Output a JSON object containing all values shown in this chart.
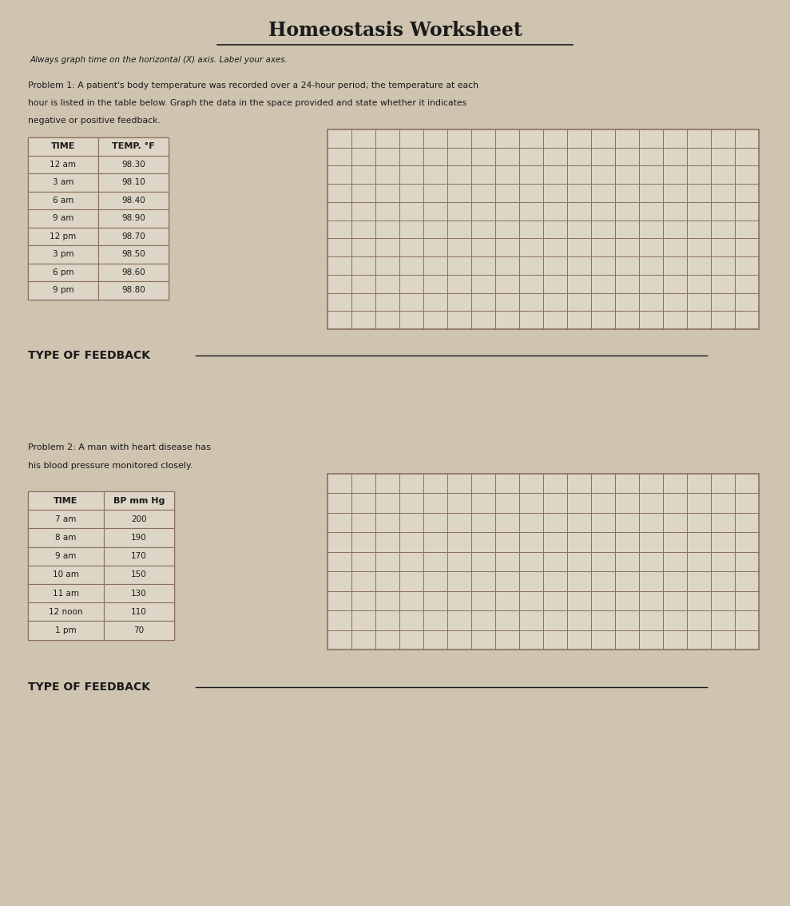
{
  "title": "Homeostasis Worksheet",
  "subtitle": "Always graph time on the horizontal (X) axis. Label your axes.",
  "bg_color": "#cfc4b0",
  "grid_color": "#8B6F5E",
  "grid_fill": "#ddd5c5",
  "table_fill": "#ddd5c5",
  "text_color": "#1a1a1a",
  "problem1_text_line1": "Problem 1: A patient's body temperature was recorded over a 24-hour period; the temperature at each",
  "problem1_text_line2": "hour is listed in the table below. Graph the data in the space provided and state whether it indicates",
  "problem1_text_line3": "negative or positive feedback.",
  "problem1_table_headers": [
    "TIME",
    "TEMP. °F"
  ],
  "problem1_table_data": [
    [
      "12 am",
      "98.30"
    ],
    [
      "3 am",
      "98.10"
    ],
    [
      "6 am",
      "98.40"
    ],
    [
      "9 am",
      "98.90"
    ],
    [
      "12 pm",
      "98.70"
    ],
    [
      "3 pm",
      "98.50"
    ],
    [
      "6 pm",
      "98.60"
    ],
    [
      "9 pm",
      "98.80"
    ]
  ],
  "type_of_feedback_label1": "TYPE OF FEEDBACK",
  "problem2_text_line1": "Problem 2: A man with heart disease has",
  "problem2_text_line2": "his blood pressure monitored closely.",
  "problem2_table_headers": [
    "TIME",
    "BP mm Hg"
  ],
  "problem2_table_data": [
    [
      "7 am",
      "200"
    ],
    [
      "8 am",
      "190"
    ],
    [
      "9 am",
      "170"
    ],
    [
      "10 am",
      "150"
    ],
    [
      "11 am",
      "130"
    ],
    [
      "12 noon",
      "110"
    ],
    [
      "1 pm",
      "70"
    ]
  ],
  "type_of_feedback_label2": "TYPE OF FEEDBACK",
  "grid1_cols": 18,
  "grid1_rows": 11,
  "grid2_cols": 18,
  "grid2_rows": 9
}
